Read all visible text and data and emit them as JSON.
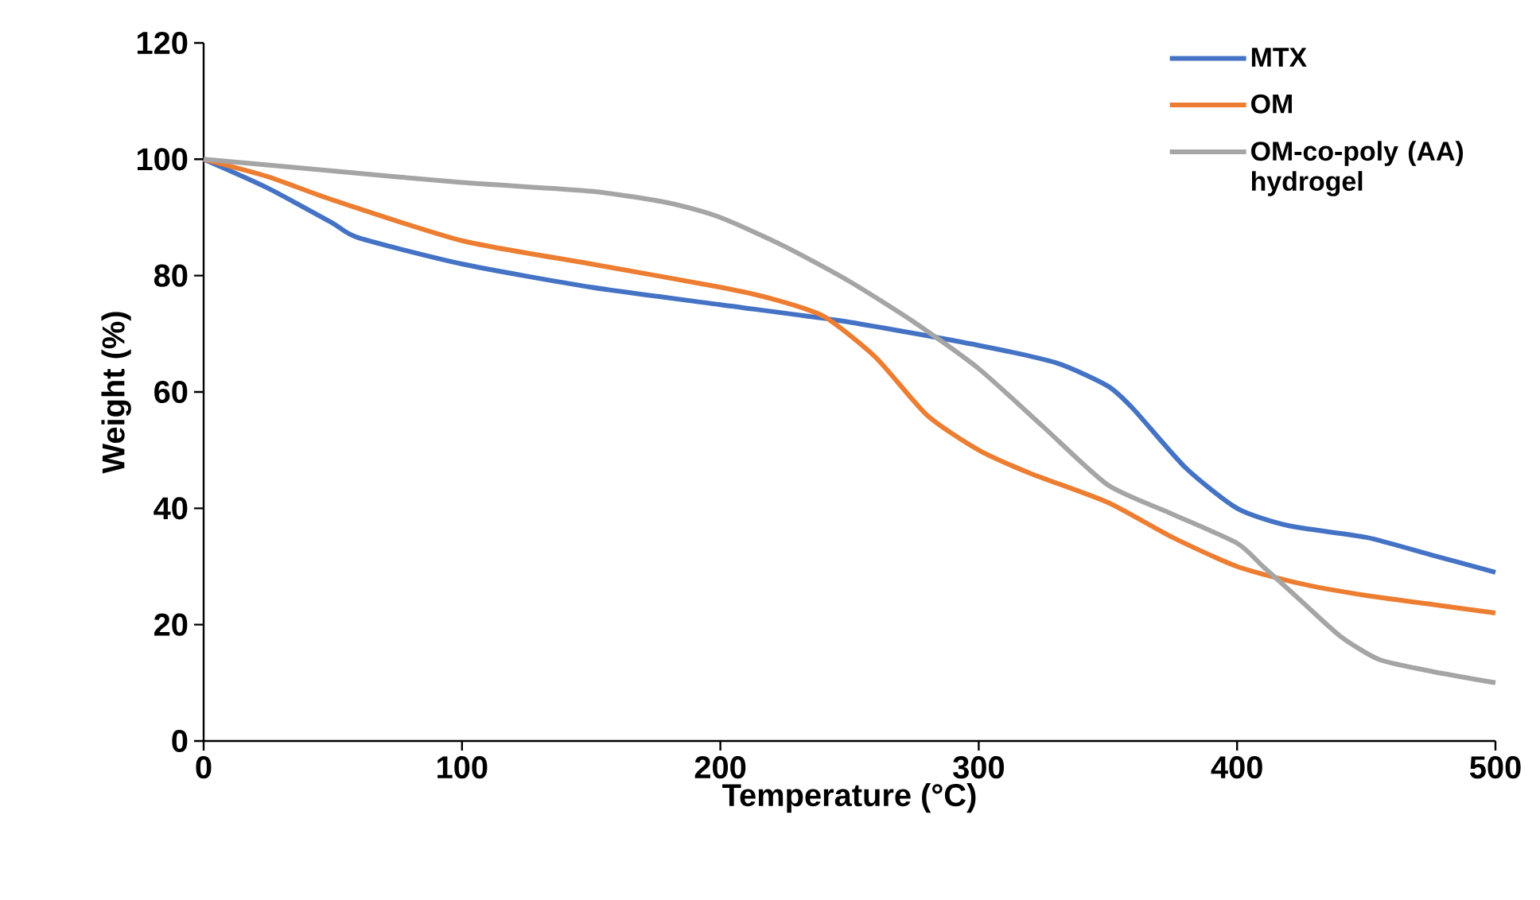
{
  "chart_data": {
    "type": "line",
    "xlabel": "Temperature (°C)",
    "ylabel": "Weight (%)",
    "xlim": [
      0,
      500
    ],
    "xticks": [
      0,
      100,
      200,
      300,
      400,
      500
    ],
    "ylim": [
      0,
      120
    ],
    "yticks": [
      0,
      20,
      40,
      60,
      80,
      100,
      120
    ],
    "legend": "top right",
    "series": [
      {
        "name": "MTX",
        "color": "#4472c4",
        "x": [
          0,
          25,
          50,
          60,
          100,
          150,
          200,
          250,
          300,
          330,
          350,
          360,
          380,
          400,
          420,
          450,
          475,
          500
        ],
        "values": [
          100,
          95,
          89,
          86.5,
          82,
          78,
          75,
          72,
          68,
          65,
          61,
          57,
          47,
          40,
          37,
          35,
          32,
          29
        ]
      },
      {
        "name": "OM",
        "color": "#ed7d31",
        "x": [
          0,
          25,
          50,
          100,
          150,
          200,
          220,
          240,
          260,
          280,
          300,
          320,
          350,
          375,
          400,
          425,
          450,
          475,
          500
        ],
        "values": [
          100,
          97,
          93,
          86,
          82,
          78,
          76,
          73,
          66,
          56,
          50,
          46,
          41,
          35,
          30,
          27,
          25,
          23.5,
          22
        ]
      },
      {
        "name": "OM-co-poly (AA) hydrogel",
        "color": "#a5a5a5",
        "x": [
          0,
          50,
          100,
          150,
          180,
          200,
          225,
          250,
          275,
          300,
          325,
          350,
          375,
          400,
          410,
          425,
          440,
          455,
          475,
          500
        ],
        "values": [
          100,
          98,
          96,
          94.5,
          92.5,
          90,
          85,
          79,
          72,
          64,
          54,
          44,
          39,
          34,
          30,
          24,
          18,
          14,
          12,
          10
        ]
      }
    ]
  }
}
